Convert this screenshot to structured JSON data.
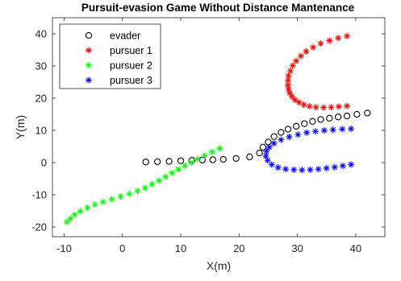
{
  "chart_data": {
    "type": "scatter",
    "title": "Pursuit-evasion Game Without Distance Mantenance",
    "xlabel": "X(m)",
    "ylabel": "Y(m)",
    "xlim": [
      -12,
      45
    ],
    "ylim": [
      -23,
      45
    ],
    "xticks": [
      -10,
      0,
      10,
      20,
      30,
      40
    ],
    "yticks": [
      -20,
      -10,
      0,
      10,
      20,
      30,
      40
    ],
    "grid": false,
    "legend_position": "top-left",
    "series": [
      {
        "name": "evader",
        "marker": "circle",
        "color": "#000000",
        "x": [
          4,
          6,
          8,
          10,
          11.9,
          13.7,
          15.5,
          17.3,
          19.5,
          21.8,
          23.5,
          24.1,
          25,
          26,
          27.2,
          28.4,
          29.8,
          31.2,
          32.6,
          34,
          35.5,
          37,
          38.5,
          40.2,
          42
        ],
        "y": [
          0.2,
          0.3,
          0.4,
          0.6,
          0.7,
          0.8,
          0.9,
          1,
          1.3,
          1.8,
          3,
          4.8,
          6.4,
          8.1,
          9.4,
          10.4,
          11.3,
          12.1,
          12.8,
          13.4,
          13.8,
          14.2,
          14.5,
          15,
          15.4
        ]
      },
      {
        "name": "pursuer 1",
        "marker": "asterisk",
        "color": "#ff0000",
        "x": [
          38.5,
          37,
          35.5,
          34,
          32.7,
          31.5,
          30.6,
          29.8,
          29.2,
          28.8,
          28.5,
          28.4,
          28.4,
          28.5,
          28.7,
          29.1,
          29.6,
          30.3,
          31.1,
          32.1,
          33.2,
          34.5,
          35.8,
          37.1,
          38.5
        ],
        "y": [
          39.3,
          38.7,
          37.9,
          37,
          35.8,
          34.5,
          33.1,
          31.6,
          30.1,
          28.5,
          27,
          25.5,
          24.1,
          22.8,
          21.6,
          20.5,
          19.5,
          18.7,
          18,
          17.5,
          17.2,
          17.1,
          17.2,
          17.4,
          17.6
        ]
      },
      {
        "name": "pursuer 2",
        "marker": "asterisk",
        "color": "#00ff00",
        "x": [
          -9.5,
          -8.9,
          -8.2,
          -7.2,
          -6,
          -4.7,
          -3.3,
          -1.8,
          -0.3,
          1.2,
          2.6,
          3.9,
          5.1,
          6.3,
          7.4,
          8.5,
          9.6,
          10.7,
          11.8,
          12.9,
          14.1,
          15.4,
          16.7
        ],
        "y": [
          -18.4,
          -17.4,
          -16.2,
          -15.1,
          -14,
          -13,
          -12.2,
          -11.4,
          -10.5,
          -9.7,
          -8.8,
          -7.8,
          -6.7,
          -5.6,
          -4.4,
          -3.2,
          -2.1,
          -1,
          0,
          1.1,
          2.2,
          3.3,
          4.4
        ]
      },
      {
        "name": "pursuer 3",
        "marker": "asterisk",
        "color": "#0000ff",
        "x": [
          39.2,
          37.8,
          36.4,
          35,
          33.6,
          32.2,
          30.8,
          29.4,
          28,
          26.7,
          25.6,
          24.9,
          24.6,
          24.7,
          25.2,
          26,
          27.2,
          28.6,
          30.1,
          31.6,
          33.1,
          34.6,
          36.1,
          37.7,
          39.2
        ],
        "y": [
          -0.6,
          -1,
          -1.4,
          -1.7,
          -2,
          -2.2,
          -2.3,
          -2.2,
          -2,
          -1.5,
          -0.6,
          0.7,
          2,
          3.5,
          4.8,
          6,
          7.1,
          8,
          8.7,
          9.3,
          9.7,
          10,
          10.2,
          10.4,
          10.5
        ]
      }
    ]
  }
}
